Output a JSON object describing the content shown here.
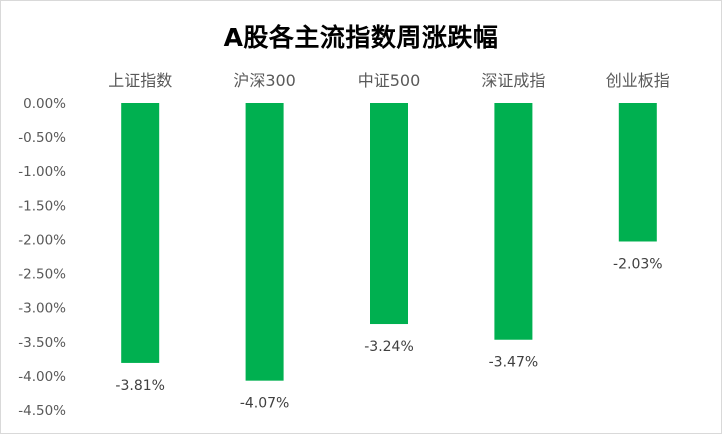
{
  "chart_data": {
    "type": "bar",
    "title": "A股各主流指数周涨跌幅",
    "categories": [
      "上证指数",
      "沪深300",
      "中证500",
      "深证成指",
      "创业板指"
    ],
    "values": [
      -3.81,
      -4.07,
      -3.24,
      -3.47,
      -2.03
    ],
    "data_labels": [
      "-3.81%",
      "-4.07%",
      "-3.24%",
      "-3.47%",
      "-2.03%"
    ],
    "y_ticks": [
      "0.00%",
      "-0.50%",
      "-1.00%",
      "-1.50%",
      "-2.00%",
      "-2.50%",
      "-3.00%",
      "-3.50%",
      "-4.00%",
      "-4.50%"
    ],
    "ylim": [
      -4.5,
      0
    ],
    "xlabel": "",
    "ylabel": "",
    "category_axis_position": "top",
    "grid": false,
    "legend": "none",
    "bar_color": "#00b050"
  }
}
